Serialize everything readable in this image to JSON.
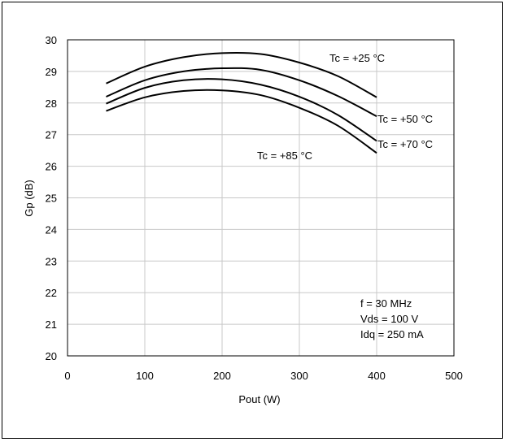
{
  "chart_data": {
    "type": "line",
    "title": "",
    "xlabel": "Pout (W)",
    "ylabel": "Gp (dB)",
    "xlim": [
      0,
      500
    ],
    "ylim": [
      20,
      30
    ],
    "xticks": [
      0,
      100,
      200,
      300,
      400,
      500
    ],
    "yticks": [
      20,
      21,
      22,
      23,
      24,
      25,
      26,
      27,
      28,
      29,
      30
    ],
    "grid": true,
    "series": [
      {
        "name": "Tc = +25 °C",
        "x": [
          50,
          100,
          150,
          200,
          250,
          300,
          350,
          400
        ],
        "y": [
          28.62,
          29.15,
          29.45,
          29.58,
          29.55,
          29.28,
          28.85,
          28.18
        ]
      },
      {
        "name": "Tc = +50 °C",
        "x": [
          50,
          100,
          150,
          200,
          250,
          300,
          350,
          400
        ],
        "y": [
          28.2,
          28.72,
          29.0,
          29.1,
          29.05,
          28.72,
          28.22,
          27.58
        ]
      },
      {
        "name": "Tc = +70 °C",
        "x": [
          50,
          100,
          150,
          200,
          250,
          300,
          350,
          400
        ],
        "y": [
          27.98,
          28.48,
          28.72,
          28.75,
          28.58,
          28.2,
          27.62,
          26.8
        ]
      },
      {
        "name": "Tc = +85 °C",
        "x": [
          50,
          100,
          150,
          200,
          250,
          300,
          350,
          400
        ],
        "y": [
          27.75,
          28.18,
          28.38,
          28.4,
          28.25,
          27.85,
          27.28,
          26.42
        ]
      }
    ],
    "annotations": [
      "f = 30 MHz",
      "Vds = 100 V",
      "Idq = 250 mA"
    ]
  }
}
